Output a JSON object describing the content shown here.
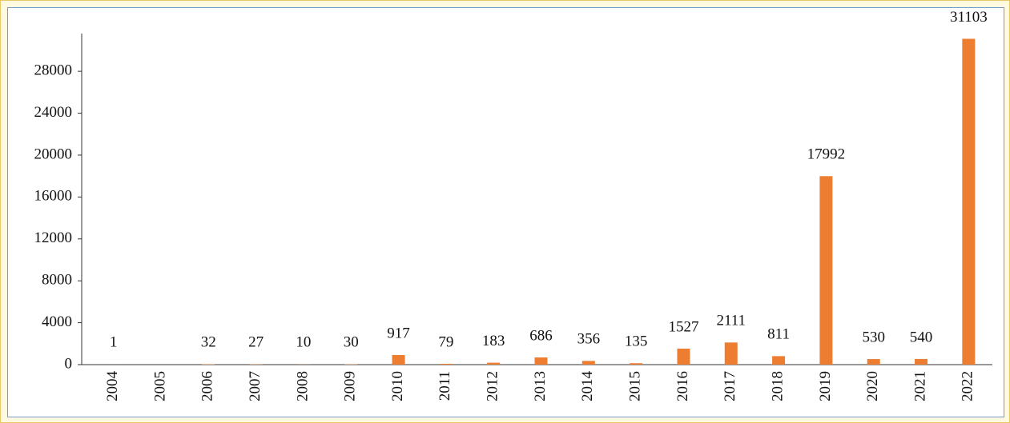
{
  "chart_data": {
    "type": "bar",
    "categories": [
      "2004",
      "2005",
      "2006",
      "2007",
      "2008",
      "2009",
      "2010",
      "2011",
      "2012",
      "2013",
      "2014",
      "2015",
      "2016",
      "2017",
      "2018",
      "2019",
      "2020",
      "2021",
      "2022"
    ],
    "values": [
      1,
      null,
      32,
      27,
      10,
      30,
      917,
      79,
      183,
      686,
      356,
      135,
      1527,
      2111,
      811,
      17992,
      530,
      540,
      31103
    ],
    "color": "#ed7d31",
    "ylim": [
      0,
      31600
    ],
    "yticks": [
      0,
      4000,
      8000,
      12000,
      16000,
      20000,
      24000,
      28000
    ],
    "grid": false
  }
}
